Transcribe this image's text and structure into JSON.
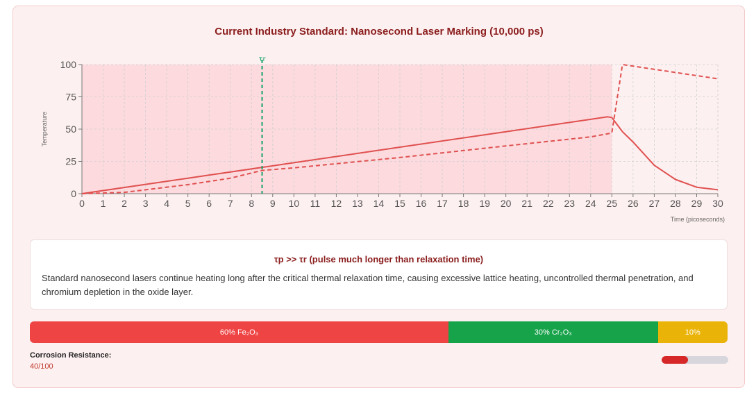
{
  "chart_data": {
    "type": "line",
    "title": "Current Industry Standard: Nanosecond Laser Marking (10,000 ps)",
    "xlabel": "Time (picoseconds)",
    "ylabel": "Temperature",
    "xlim": [
      0,
      30
    ],
    "ylim": [
      0,
      100
    ],
    "xticks": [
      0,
      1,
      2,
      3,
      4,
      5,
      6,
      7,
      8,
      9,
      10,
      11,
      12,
      13,
      14,
      15,
      16,
      17,
      18,
      19,
      20,
      21,
      22,
      23,
      24,
      25,
      26,
      27,
      28,
      29,
      30
    ],
    "yticks": [
      0,
      25,
      50,
      75,
      100
    ],
    "grid": true,
    "pulse_region": [
      0,
      25
    ],
    "marker": {
      "label": "τr",
      "x": 8.5
    },
    "series": [
      {
        "style": "solid",
        "color": "#e05050",
        "x": [
          0,
          5,
          10,
          15,
          20,
          24,
          24.8,
          25,
          25.5,
          26,
          27,
          28,
          29,
          30
        ],
        "y": [
          0,
          12,
          24,
          36,
          48,
          57.6,
          59.5,
          59,
          48,
          40,
          22,
          11,
          5,
          3
        ]
      },
      {
        "style": "dashed",
        "color": "#e05050",
        "x": [
          0,
          2,
          5,
          7,
          8,
          8.5,
          10,
          15,
          20,
          24,
          25,
          25.5,
          30
        ],
        "y": [
          0,
          1,
          7,
          12,
          16,
          18,
          20,
          28,
          37,
          44,
          47,
          100,
          89
        ]
      }
    ]
  },
  "info": {
    "heading": "τp >> τr (pulse much longer than relaxation time)",
    "body": "Standard nanosecond lasers continue heating long after the critical thermal relaxation time, causing excessive lattice heating, uncontrolled thermal penetration, and chromium depletion in the oxide layer."
  },
  "composition": [
    {
      "label": "60% Fe₂O₃",
      "percent": 60,
      "color": "#ef4444"
    },
    {
      "label": "30% Cr₂O₃",
      "percent": 30,
      "color": "#16a34a"
    },
    {
      "label": "10%",
      "percent": 10,
      "color": "#eab308"
    }
  ],
  "corrosion": {
    "label": "Corrosion Resistance:",
    "value_text": "40/100",
    "fraction": 0.4
  }
}
